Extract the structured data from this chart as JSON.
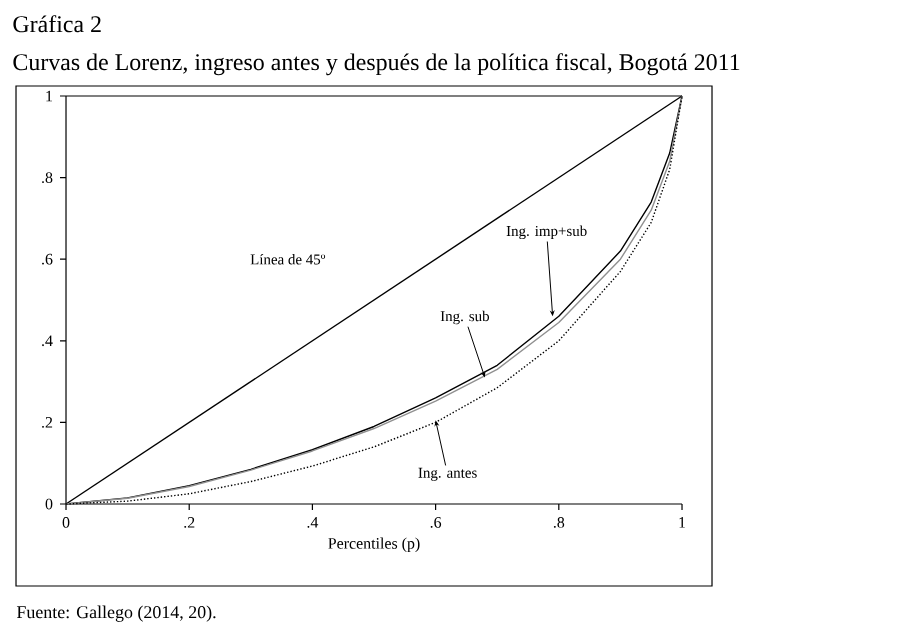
{
  "chart_data": {
    "type": "line",
    "title": "Gráfica 2",
    "subtitle": "Curvas de Lorenz, ingreso antes y después de la política fiscal, Bogotá 2011",
    "xlabel": "Percentiles (p)",
    "x": [
      0,
      0.1,
      0.2,
      0.3,
      0.4,
      0.5,
      0.6,
      0.7,
      0.8,
      0.9,
      0.95,
      0.98,
      1
    ],
    "series": [
      {
        "color": "#000000",
        "line_style": "solid",
        "x": [
          0,
          1
        ],
        "values": [
          0,
          1
        ]
      },
      {
        "color": "#000000",
        "line_style": "solid",
        "values": [
          0,
          0.015,
          0.045,
          0.085,
          0.133,
          0.19,
          0.26,
          0.34,
          0.46,
          0.62,
          0.74,
          0.86,
          1
        ]
      },
      {
        "color": "#909090",
        "line_style": "solid",
        "values": [
          0,
          0.014,
          0.043,
          0.083,
          0.13,
          0.185,
          0.252,
          0.33,
          0.445,
          0.6,
          0.72,
          0.84,
          1
        ]
      },
      {
        "color": "#000000",
        "line_style": "dotted",
        "values": [
          0,
          0.007,
          0.025,
          0.055,
          0.093,
          0.14,
          0.2,
          0.285,
          0.4,
          0.57,
          0.69,
          0.82,
          1
        ]
      }
    ],
    "xlim": [
      0,
      1
    ],
    "ylim": [
      0,
      1
    ],
    "xticks": [
      0,
      {
        "value": 0.2,
        "label": ".2"
      },
      {
        "value": 0.4,
        "label": ".4"
      },
      {
        "value": 0.6,
        "label": ".6"
      },
      {
        "value": 0.8,
        "label": ".8"
      },
      1
    ],
    "yticks": [
      0,
      {
        "value": 0.2,
        "label": ".2"
      },
      {
        "value": 0.4,
        "label": ".4"
      },
      {
        "value": 0.6,
        "label": ".6"
      },
      {
        "value": 0.8,
        "label": ".8"
      },
      1
    ],
    "ref_lines": [
      {
        "axis": "y",
        "value": 1,
        "color": "#000000"
      }
    ],
    "annotations": [
      "Línea de 45º",
      {
        "text": "Ing. imp+sub",
        "x": 0.79,
        "y": 0.46
      },
      {
        "text": "Ing. sub",
        "x": 0.68,
        "y": 0.31
      },
      {
        "text": "Ing. antes",
        "x": 0.6,
        "y": 0.205
      },
      "Fuente: Gallego (2014, 20)."
    ],
    "grid": false
  }
}
